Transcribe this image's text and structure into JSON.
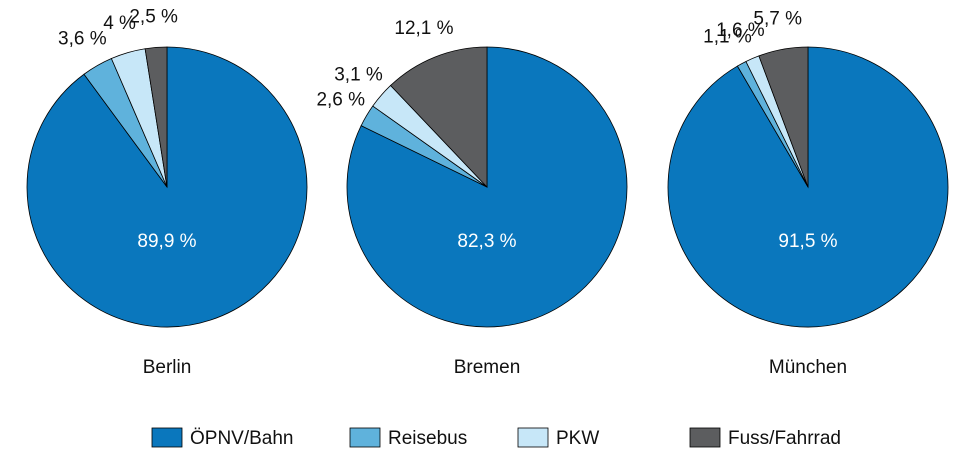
{
  "chart_data": {
    "type": "pie",
    "categories": [
      "ÖPNV/Bahn",
      "Reisebus",
      "PKW",
      "Fuss/Fahrrad"
    ],
    "colors": [
      "#0a77bd",
      "#5fb2dc",
      "#c7e7f8",
      "#5c5d5f"
    ],
    "series": [
      {
        "name": "Berlin",
        "values": [
          89.9,
          3.6,
          4,
          2.5
        ],
        "value_labels": [
          "89,9 %",
          "3,6 %",
          "4 %",
          "2,5 %"
        ]
      },
      {
        "name": "Bremen",
        "values": [
          82.3,
          2.6,
          3.1,
          12.1
        ],
        "value_labels": [
          "82,3 %",
          "2,6 %",
          "3,1 %",
          "12,1 %"
        ]
      },
      {
        "name": "München",
        "values": [
          91.5,
          1.1,
          1.6,
          5.7
        ],
        "value_labels": [
          "91,5 %",
          "1,1 %",
          "1,6 %",
          "5,7 %"
        ]
      }
    ]
  }
}
